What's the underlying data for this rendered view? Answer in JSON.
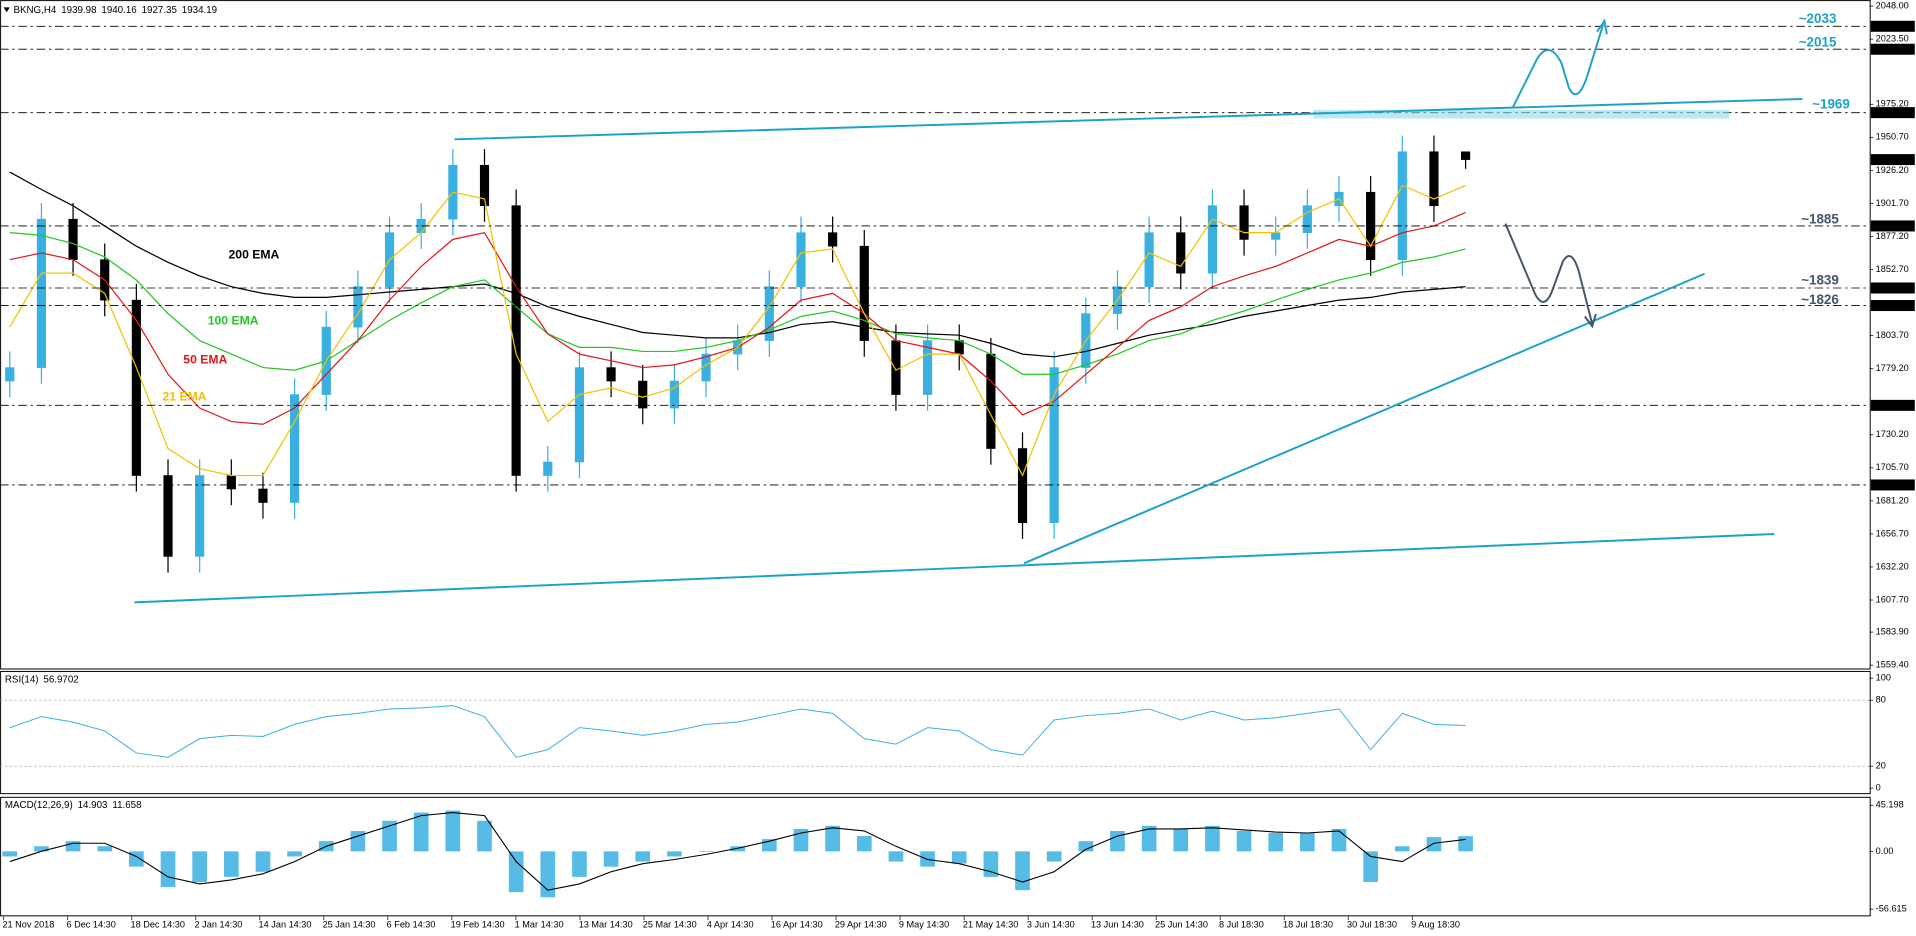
{
  "chart_data": [
    {
      "type": "candlestick",
      "title": "BKNG,H4",
      "ohlc": {
        "open": [
          1770,
          1780,
          1890,
          1860,
          1830,
          1700,
          1640,
          1700,
          1690,
          1680,
          1760,
          1810,
          1840,
          1880,
          1890,
          1930,
          1900,
          1700,
          1710,
          1780,
          1770,
          1750,
          1770,
          1790,
          1800,
          1840,
          1880,
          1870,
          1800,
          1760,
          1800,
          1790,
          1720,
          1665,
          1780,
          1820,
          1840,
          1880,
          1850,
          1900,
          1875,
          1880,
          1900,
          1910,
          1860,
          1940,
          1939.98
        ],
        "high": [
          1792,
          1902,
          1902,
          1872,
          1842,
          1712,
          1712,
          1712,
          1702,
          1772,
          1822,
          1852,
          1892,
          1902,
          1942,
          1942,
          1912,
          1722,
          1792,
          1792,
          1782,
          1782,
          1802,
          1812,
          1852,
          1892,
          1892,
          1882,
          1812,
          1812,
          1812,
          1802,
          1732,
          1792,
          1832,
          1852,
          1892,
          1892,
          1912,
          1912,
          1892,
          1912,
          1922,
          1922,
          1952,
          1952,
          1940.16
        ],
        "low": [
          1758,
          1768,
          1848,
          1818,
          1688,
          1628,
          1628,
          1678,
          1668,
          1668,
          1748,
          1798,
          1828,
          1868,
          1878,
          1888,
          1688,
          1688,
          1698,
          1758,
          1738,
          1738,
          1758,
          1778,
          1788,
          1828,
          1858,
          1788,
          1748,
          1748,
          1778,
          1708,
          1653,
          1653,
          1768,
          1808,
          1828,
          1838,
          1838,
          1863,
          1863,
          1868,
          1888,
          1848,
          1848,
          1888,
          1927.35
        ],
        "close": [
          1780,
          1890,
          1860,
          1830,
          1700,
          1640,
          1700,
          1690,
          1680,
          1760,
          1810,
          1840,
          1880,
          1890,
          1930,
          1900,
          1700,
          1710,
          1780,
          1770,
          1750,
          1770,
          1790,
          1800,
          1840,
          1880,
          1870,
          1800,
          1760,
          1800,
          1790,
          1720,
          1665,
          1780,
          1820,
          1840,
          1880,
          1850,
          1900,
          1875,
          1880,
          1900,
          1910,
          1860,
          1940,
          1900,
          1934.19
        ]
      },
      "up_color": "#3ab0e0",
      "down_color": "#000000",
      "series": [
        {
          "name": "200 EMA",
          "color": "#000000",
          "values": [
            1925,
            1912,
            1900,
            1885,
            1870,
            1858,
            1848,
            1840,
            1835,
            1832,
            1832,
            1834,
            1836,
            1838,
            1840,
            1842,
            1835,
            1825,
            1818,
            1812,
            1806,
            1804,
            1802,
            1802,
            1806,
            1812,
            1814,
            1810,
            1806,
            1805,
            1804,
            1798,
            1790,
            1788,
            1792,
            1798,
            1804,
            1808,
            1812,
            1818,
            1822,
            1826,
            1830,
            1832,
            1836,
            1838,
            1840
          ]
        },
        {
          "name": "100 EMA",
          "color": "#22c722",
          "values": [
            1880,
            1878,
            1872,
            1862,
            1845,
            1820,
            1800,
            1790,
            1780,
            1778,
            1785,
            1800,
            1815,
            1828,
            1840,
            1845,
            1825,
            1805,
            1795,
            1795,
            1792,
            1792,
            1795,
            1800,
            1808,
            1818,
            1822,
            1815,
            1805,
            1802,
            1800,
            1790,
            1775,
            1775,
            1782,
            1790,
            1800,
            1805,
            1815,
            1822,
            1830,
            1838,
            1845,
            1850,
            1858,
            1862,
            1868
          ]
        },
        {
          "name": "50 EMA",
          "color": "#e01818",
          "values": [
            1860,
            1865,
            1860,
            1845,
            1815,
            1775,
            1750,
            1740,
            1738,
            1750,
            1775,
            1800,
            1830,
            1855,
            1875,
            1880,
            1840,
            1805,
            1790,
            1785,
            1780,
            1782,
            1788,
            1795,
            1810,
            1830,
            1835,
            1820,
            1800,
            1795,
            1790,
            1770,
            1745,
            1755,
            1775,
            1795,
            1815,
            1825,
            1840,
            1848,
            1855,
            1865,
            1875,
            1870,
            1880,
            1885,
            1895
          ]
        },
        {
          "name": "21 EMA",
          "color": "#f2c200",
          "values": [
            1810,
            1850,
            1850,
            1835,
            1780,
            1720,
            1705,
            1700,
            1700,
            1740,
            1785,
            1820,
            1860,
            1880,
            1910,
            1905,
            1790,
            1740,
            1760,
            1765,
            1758,
            1765,
            1782,
            1795,
            1825,
            1865,
            1868,
            1820,
            1778,
            1790,
            1790,
            1745,
            1700,
            1760,
            1800,
            1830,
            1865,
            1855,
            1890,
            1880,
            1880,
            1895,
            1905,
            1870,
            1915,
            1905,
            1915
          ]
        }
      ],
      "ylim": [
        1557,
        2052.5
      ],
      "yticks": [
        {
          "value": 2048,
          "label": "2048.00"
        },
        {
          "value": 2023.5,
          "label": "2023.50"
        },
        {
          "value": 1975.2,
          "label": "1975.20"
        },
        {
          "value": 1950.7,
          "label": "1950.70"
        },
        {
          "value": 1926.2,
          "label": "1926.20"
        },
        {
          "value": 1901.7,
          "label": "1901.70"
        },
        {
          "value": 1877.2,
          "label": "1877.20"
        },
        {
          "value": 1852.7,
          "label": "1852.70"
        },
        {
          "value": 1803.7,
          "label": "1803.70"
        },
        {
          "value": 1779.2,
          "label": "1779.20"
        },
        {
          "value": 1730.2,
          "label": "1730.20"
        },
        {
          "value": 1705.7,
          "label": "1705.70"
        },
        {
          "value": 1681.2,
          "label": "1681.20"
        },
        {
          "value": 1656.7,
          "label": "1656.70"
        },
        {
          "value": 1632.2,
          "label": "1632.20"
        },
        {
          "value": 1607.7,
          "label": "1607.70"
        },
        {
          "value": 1583.9,
          "label": "1583.90"
        },
        {
          "value": 1559.4,
          "label": "1559.40"
        }
      ],
      "levels": [
        {
          "value": 2033,
          "label": "2033.00"
        },
        {
          "value": 2016,
          "label": "2016.00"
        },
        {
          "value": 1969,
          "label": "1969.00"
        },
        {
          "value": 1885,
          "label": "1885.00"
        },
        {
          "value": 1839,
          "label": "1839.00"
        },
        {
          "value": 1826,
          "label": "1826.00"
        },
        {
          "value": 1752,
          "label": "1752.00"
        },
        {
          "value": 1693,
          "label": "1693.00"
        }
      ],
      "notes": [
        {
          "text": "~2033",
          "color": "#1ba2c9"
        },
        {
          "text": "~2015",
          "color": "#1ba2c9"
        },
        {
          "text": "~1969",
          "color": "#1ba2c9"
        },
        {
          "text": "~1885",
          "color": "#44546a"
        },
        {
          "text": "~1839",
          "color": "#44546a"
        },
        {
          "text": "~1826",
          "color": "#44546a"
        }
      ],
      "x_ticks": [
        "21 Nov 2018",
        "6 Dec 14:30",
        "18 Dec 14:30",
        "2 Jan 14:30",
        "14 Jan 14:30",
        "25 Jan 14:30",
        "6 Feb 14:30",
        "19 Feb 14:30",
        "1 Mar 14:30",
        "13 Mar 14:30",
        "25 Mar 14:30",
        "4 Apr 14:30",
        "16 Apr 14:30",
        "29 Apr 14:30",
        "9 May 14:30",
        "21 May 14:30",
        "3 Jun 14:30",
        "13 Jun 14:30",
        "25 Jun 14:30",
        "8 Jul 18:30",
        "18 Jul 18:30",
        "30 Jul 18:30",
        "9 Aug 18:30"
      ]
    },
    {
      "type": "line",
      "title": "RSI(14)",
      "series": [
        {
          "color": "#3ab0e0",
          "values": [
            55,
            65,
            60,
            52,
            32,
            28,
            45,
            48,
            47,
            58,
            65,
            68,
            72,
            73,
            75,
            65,
            28,
            35,
            55,
            52,
            48,
            52,
            58,
            60,
            66,
            72,
            68,
            45,
            40,
            55,
            52,
            35,
            30,
            62,
            66,
            68,
            72,
            62,
            70,
            62,
            64,
            68,
            72,
            35,
            68,
            58,
            56.9702
          ]
        }
      ],
      "ylim": [
        0,
        100
      ],
      "yticks": [
        100,
        80,
        20,
        0
      ],
      "grid": true
    },
    {
      "type": "bar",
      "title": "MACD(12,26,9)",
      "series": [
        {
          "type": "bar",
          "color": "#3ab0e0",
          "values": [
            -5,
            5,
            10,
            5,
            -15,
            -35,
            -30,
            -25,
            -20,
            -5,
            10,
            20,
            30,
            38,
            40,
            30,
            -40,
            -45,
            -25,
            -15,
            -10,
            -5,
            0,
            5,
            12,
            22,
            25,
            15,
            -10,
            -15,
            -12,
            -25,
            -38,
            -10,
            10,
            20,
            25,
            22,
            25,
            20,
            18,
            18,
            22,
            -30,
            5,
            14,
            14.903
          ]
        },
        {
          "type": "line",
          "color": "#000000",
          "values": [
            -10,
            0,
            8,
            8,
            -5,
            -25,
            -32,
            -28,
            -22,
            -10,
            5,
            15,
            25,
            35,
            38,
            35,
            -10,
            -38,
            -32,
            -20,
            -12,
            -8,
            -3,
            3,
            10,
            18,
            23,
            20,
            5,
            -8,
            -12,
            -20,
            -30,
            -20,
            2,
            15,
            22,
            22,
            23,
            21,
            19,
            18,
            20,
            -5,
            -10,
            8,
            11.658
          ]
        }
      ],
      "ylim": [
        -56.615,
        45.198
      ],
      "yticks": [
        {
          "value": 45.198,
          "label": "45.198"
        },
        {
          "value": 0,
          "label": "0.00"
        },
        {
          "value": -56.615,
          "label": "-56.615"
        }
      ]
    }
  ]
}
